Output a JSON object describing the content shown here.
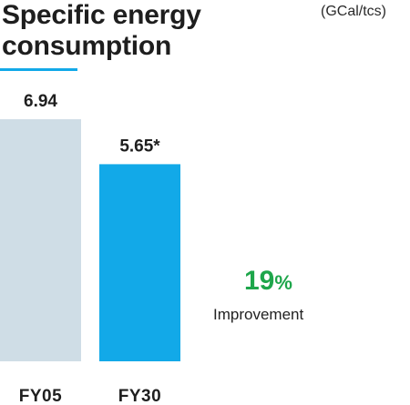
{
  "header": {
    "title_line1": "Specific energy",
    "title_line2": "consumption",
    "unit": "(GCal/tcs)"
  },
  "colors": {
    "accent": "#12a9e8",
    "baseline_bar": "#cfdde6",
    "target_bar": "#12a9e8",
    "improvement": "#1ea64b"
  },
  "chart_data": {
    "type": "bar",
    "categories": [
      "FY05",
      "FY30"
    ],
    "values": [
      6.94,
      5.65
    ],
    "value_labels": [
      "6.94",
      "5.65*"
    ],
    "ylim": [
      0,
      7.8
    ],
    "grid": false
  },
  "improvement": {
    "value": "19",
    "unit": "%",
    "label": "Improvement"
  }
}
